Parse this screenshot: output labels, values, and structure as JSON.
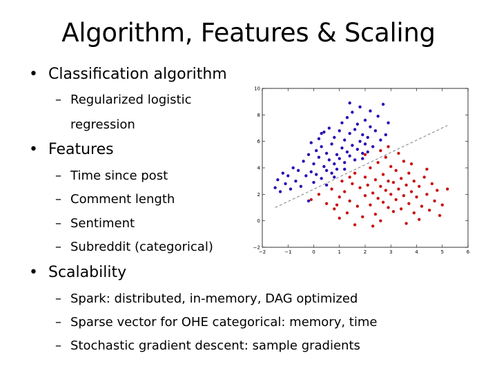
{
  "slide": {
    "title": "Algorithm, Features & Scaling",
    "bullet_symbol": "•",
    "dash_symbol": "–",
    "sections": [
      {
        "label": "Classification algorithm",
        "items": [
          "Regularized logistic",
          "regression"
        ]
      },
      {
        "label": "Features",
        "items": [
          "Time since post",
          "Comment length",
          "Sentiment",
          "Subreddit (categorical)"
        ]
      },
      {
        "label": "Scalability",
        "items": [
          "Spark:  distributed, in-memory, DAG optimized",
          "Sparse vector for OHE categorical:  memory, time",
          "Stochastic gradient descent:  sample gradients"
        ]
      }
    ]
  },
  "chart_data": {
    "type": "scatter",
    "title": "",
    "xlabel": "",
    "ylabel": "",
    "xlim": [
      -2,
      6
    ],
    "ylim": [
      -2,
      10
    ],
    "x_ticks": [
      -2,
      -1,
      0,
      1,
      2,
      3,
      4,
      5,
      6
    ],
    "y_ticks": [
      -2,
      0,
      2,
      4,
      6,
      8,
      10
    ],
    "x_tick_labels": [
      "−2",
      "−1",
      "0",
      "1",
      "2",
      "3",
      "4",
      "5",
      "6"
    ],
    "y_tick_labels": [
      "−2",
      "0",
      "2",
      "4",
      "6",
      "8",
      "10"
    ],
    "grid": false,
    "series": [
      {
        "color": "#2a0db5",
        "points": [
          [
            -1.5,
            2.5
          ],
          [
            -1.4,
            3.1
          ],
          [
            -1.3,
            2.2
          ],
          [
            -1.2,
            3.6
          ],
          [
            -1.1,
            2.8
          ],
          [
            -1.0,
            3.4
          ],
          [
            -0.9,
            2.4
          ],
          [
            -0.8,
            4.0
          ],
          [
            -0.7,
            3.0
          ],
          [
            -0.6,
            3.8
          ],
          [
            -0.5,
            2.6
          ],
          [
            -0.4,
            4.5
          ],
          [
            -0.3,
            3.4
          ],
          [
            -0.2,
            5.0
          ],
          [
            -0.1,
            3.7
          ],
          [
            0.0,
            4.3
          ],
          [
            0.0,
            2.9
          ],
          [
            0.1,
            5.3
          ],
          [
            0.1,
            3.5
          ],
          [
            0.2,
            4.8
          ],
          [
            0.2,
            6.2
          ],
          [
            0.3,
            3.2
          ],
          [
            0.3,
            5.6
          ],
          [
            0.4,
            4.1
          ],
          [
            0.4,
            6.7
          ],
          [
            0.5,
            3.8
          ],
          [
            0.5,
            5.1
          ],
          [
            0.6,
            4.6
          ],
          [
            0.6,
            7.0
          ],
          [
            0.7,
            3.6
          ],
          [
            0.7,
            5.8
          ],
          [
            0.8,
            4.3
          ],
          [
            0.8,
            6.3
          ],
          [
            0.9,
            5.0
          ],
          [
            0.9,
            3.9
          ],
          [
            1.0,
            6.8
          ],
          [
            1.0,
            4.7
          ],
          [
            1.1,
            5.5
          ],
          [
            1.1,
            7.4
          ],
          [
            1.2,
            4.4
          ],
          [
            1.2,
            6.1
          ],
          [
            1.3,
            5.2
          ],
          [
            1.3,
            7.8
          ],
          [
            1.4,
            4.9
          ],
          [
            1.4,
            6.6
          ],
          [
            1.5,
            5.7
          ],
          [
            1.5,
            8.2
          ],
          [
            1.6,
            4.6
          ],
          [
            1.6,
            6.9
          ],
          [
            1.7,
            5.4
          ],
          [
            1.7,
            7.3
          ],
          [
            1.8,
            6.0
          ],
          [
            1.8,
            8.6
          ],
          [
            1.9,
            5.1
          ],
          [
            1.9,
            6.5
          ],
          [
            2.0,
            7.6
          ],
          [
            2.0,
            5.8
          ],
          [
            2.1,
            6.3
          ],
          [
            2.2,
            7.1
          ],
          [
            2.3,
            5.6
          ],
          [
            2.4,
            6.8
          ],
          [
            2.5,
            7.9
          ],
          [
            2.6,
            6.1
          ],
          [
            2.7,
            8.8
          ],
          [
            2.8,
            6.5
          ],
          [
            2.9,
            7.4
          ],
          [
            1.2,
            3.9
          ],
          [
            0.5,
            2.7
          ],
          [
            -0.1,
            5.9
          ],
          [
            1.4,
            8.9
          ],
          [
            0.8,
            3.3
          ],
          [
            2.2,
            8.3
          ],
          [
            0.3,
            6.6
          ],
          [
            1.9,
            4.7
          ],
          [
            2.1,
            5.2
          ],
          [
            -0.2,
            1.5
          ]
        ]
      },
      {
        "color": "#c81414",
        "points": [
          [
            -0.1,
            1.6
          ],
          [
            0.2,
            2.0
          ],
          [
            0.5,
            1.3
          ],
          [
            0.7,
            2.4
          ],
          [
            0.8,
            0.9
          ],
          [
            1.0,
            1.8
          ],
          [
            1.1,
            3.0
          ],
          [
            1.2,
            2.2
          ],
          [
            1.3,
            0.6
          ],
          [
            1.4,
            1.5
          ],
          [
            1.5,
            2.8
          ],
          [
            1.6,
            3.6
          ],
          [
            1.7,
            1.1
          ],
          [
            1.8,
            2.5
          ],
          [
            1.9,
            0.3
          ],
          [
            2.0,
            1.9
          ],
          [
            2.0,
            3.3
          ],
          [
            2.1,
            2.7
          ],
          [
            2.2,
            1.2
          ],
          [
            2.2,
            4.0
          ],
          [
            2.3,
            2.1
          ],
          [
            2.4,
            0.5
          ],
          [
            2.4,
            3.1
          ],
          [
            2.5,
            1.7
          ],
          [
            2.5,
            4.4
          ],
          [
            2.6,
            2.6
          ],
          [
            2.6,
            0.0
          ],
          [
            2.7,
            3.5
          ],
          [
            2.7,
            1.4
          ],
          [
            2.8,
            2.3
          ],
          [
            2.8,
            4.8
          ],
          [
            2.9,
            1.0
          ],
          [
            2.9,
            3.0
          ],
          [
            3.0,
            2.0
          ],
          [
            3.0,
            4.1
          ],
          [
            3.1,
            0.7
          ],
          [
            3.1,
            2.9
          ],
          [
            3.2,
            1.6
          ],
          [
            3.2,
            3.8
          ],
          [
            3.3,
            2.4
          ],
          [
            3.4,
            0.9
          ],
          [
            3.4,
            3.2
          ],
          [
            3.5,
            1.9
          ],
          [
            3.5,
            4.5
          ],
          [
            3.6,
            2.7
          ],
          [
            3.7,
            1.3
          ],
          [
            3.7,
            3.6
          ],
          [
            3.8,
            2.2
          ],
          [
            3.9,
            0.6
          ],
          [
            3.9,
            3.0
          ],
          [
            4.0,
            1.8
          ],
          [
            4.1,
            2.6
          ],
          [
            4.2,
            1.1
          ],
          [
            4.3,
            3.3
          ],
          [
            4.4,
            2.0
          ],
          [
            4.5,
            0.8
          ],
          [
            4.6,
            2.8
          ],
          [
            4.7,
            1.5
          ],
          [
            4.8,
            2.3
          ],
          [
            5.0,
            1.2
          ],
          [
            5.2,
            2.4
          ],
          [
            4.9,
            0.4
          ],
          [
            2.3,
            -0.4
          ],
          [
            1.6,
            -0.3
          ],
          [
            2.6,
            5.3
          ],
          [
            2.0,
            5.0
          ],
          [
            3.3,
            5.1
          ],
          [
            1.0,
            0.2
          ],
          [
            3.6,
            -0.2
          ],
          [
            4.4,
            3.9
          ],
          [
            1.4,
            3.3
          ],
          [
            2.9,
            5.6
          ],
          [
            0.9,
            1.2
          ],
          [
            3.8,
            4.3
          ],
          [
            4.1,
            0.1
          ]
        ]
      }
    ],
    "decision_line": {
      "color": "#8a8a8a",
      "style": "dashed",
      "x": [
        -1.5,
        5.2
      ],
      "y": [
        1.0,
        7.2
      ]
    }
  }
}
